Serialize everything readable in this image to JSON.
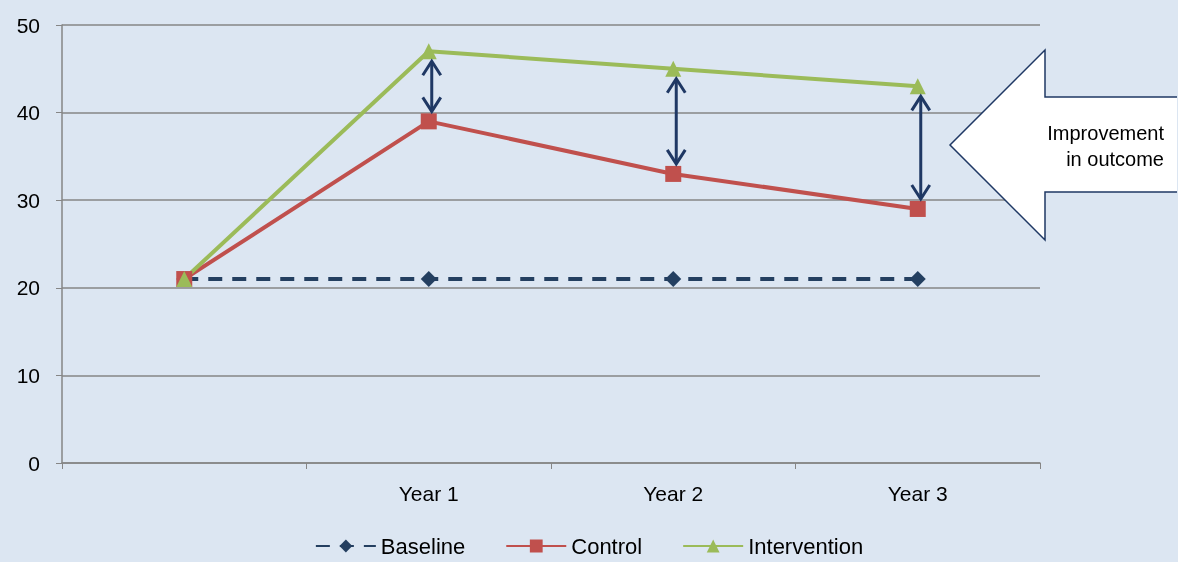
{
  "chart_data": {
    "type": "line",
    "categories": [
      null,
      "Year 1",
      "Year 2",
      "Year 3"
    ],
    "series": [
      {
        "name": "Baseline",
        "color": "#243f60",
        "values": [
          21,
          21,
          21,
          21
        ],
        "marker": "diamond",
        "line_style": "dashed"
      },
      {
        "name": "Control",
        "color": "#c0504d",
        "values": [
          21,
          39,
          33,
          29
        ],
        "marker": "square",
        "line_style": "solid"
      },
      {
        "name": "Intervention",
        "color": "#9bbb59",
        "values": [
          21,
          47,
          45,
          43
        ],
        "marker": "triangle",
        "line_style": "solid"
      }
    ],
    "ylim": [
      0,
      50
    ],
    "yticks": [
      0,
      10,
      20,
      30,
      40,
      50
    ],
    "grid": "y",
    "legend": "bottom",
    "annotations": [
      "Improvement\nin outcome"
    ]
  }
}
